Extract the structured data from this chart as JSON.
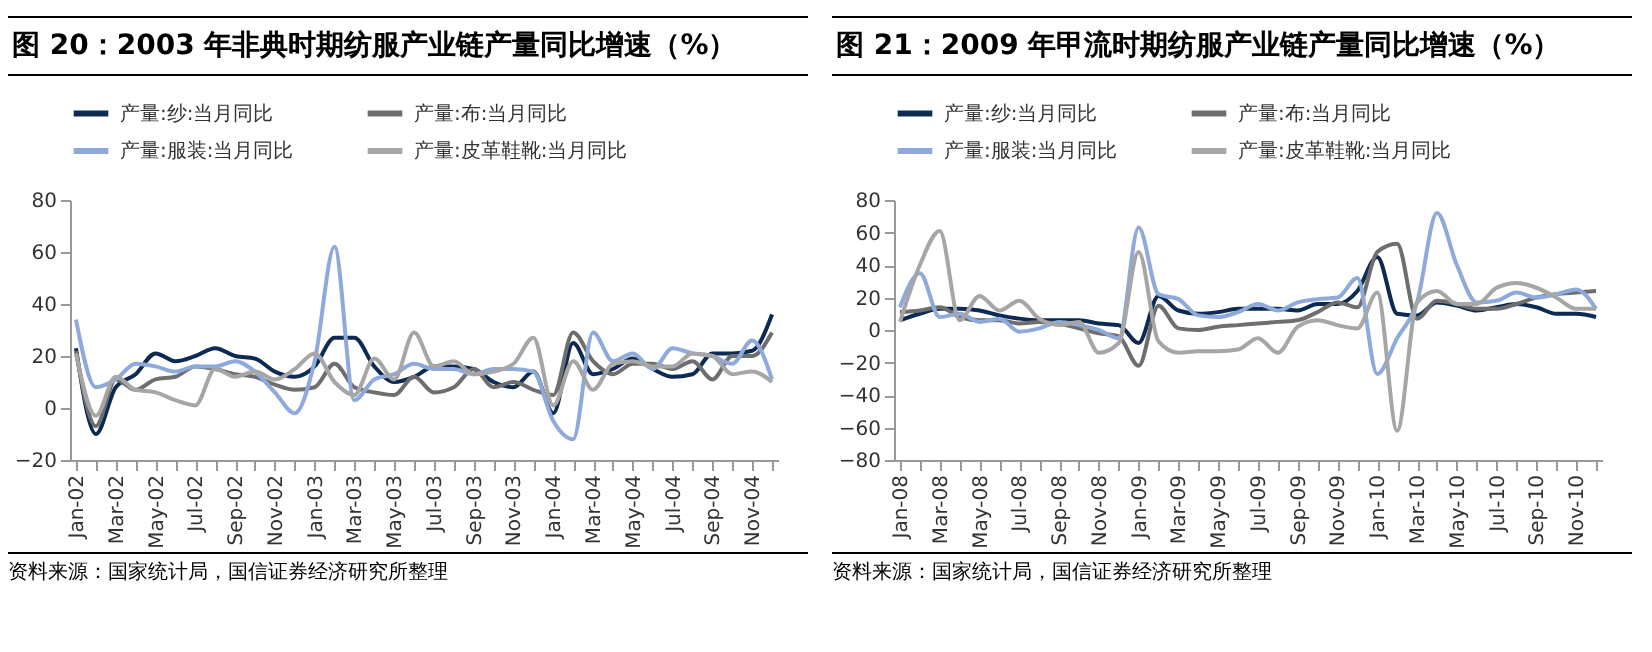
{
  "chart_data": [
    {
      "type": "line",
      "title": "图 20：2003 年非典时期纺服产业链产量同比增速（%）",
      "annotations": [
        "资料来源：国家统计局，国信证券经济研究所整理"
      ],
      "categories": [
        "Jan-02",
        null,
        "Mar-02",
        null,
        "May-02",
        null,
        "Jul-02",
        null,
        "Sep-02",
        null,
        "Nov-02",
        null,
        "Jan-03",
        null,
        "Mar-03",
        null,
        "May-03",
        null,
        "Jul-03",
        null,
        "Sep-03",
        null,
        "Nov-03",
        null,
        "Jan-04",
        null,
        "Mar-04",
        null,
        "May-04",
        null,
        "Jul-04",
        null,
        "Sep-04",
        null,
        "Nov-04",
        null
      ],
      "series": [
        {
          "name": "产量:纱:当月同比",
          "color": "#0d2a52",
          "values": [
            23,
            -10,
            8,
            13,
            21,
            18,
            20,
            23,
            20,
            19,
            14,
            12,
            16,
            27,
            27,
            16,
            10,
            12,
            16,
            16,
            15,
            10,
            8,
            14,
            -2,
            25,
            13,
            15,
            19,
            15,
            12,
            13,
            21,
            21,
            22,
            36
          ]
        },
        {
          "name": "产量:布:当月同比",
          "color": "#6e6e6e",
          "values": [
            22,
            -7,
            11,
            7,
            11,
            12,
            16,
            15,
            13,
            12,
            9,
            7,
            8,
            17,
            8,
            6,
            5,
            12,
            6,
            8,
            15,
            8,
            10,
            7,
            5,
            29,
            18,
            13,
            17,
            17,
            15,
            18,
            11,
            20,
            20,
            29
          ]
        },
        {
          "name": "产量:服装:当月同比",
          "color": "#8eaadb",
          "values": [
            34,
            8,
            11,
            17,
            16,
            14,
            16,
            16,
            18,
            14,
            6,
            -2,
            18,
            62,
            3,
            11,
            13,
            17,
            15,
            15,
            13,
            15,
            15,
            14,
            -5,
            -12,
            29,
            18,
            21,
            15,
            23,
            21,
            20,
            17,
            26,
            11
          ]
        },
        {
          "name": "产量:皮革鞋靴:当月同比",
          "color": "#a6a6a6",
          "values": [
            21,
            -3,
            12,
            7,
            6,
            3,
            1,
            15,
            12,
            14,
            11,
            15,
            21,
            10,
            5,
            19,
            11,
            29,
            16,
            18,
            13,
            14,
            17,
            27,
            1,
            18,
            7,
            17,
            18,
            16,
            16,
            21,
            20,
            13,
            14,
            10
          ]
        }
      ],
      "ylim": [
        -20,
        80
      ],
      "yticks": [
        -20,
        0,
        20,
        40,
        60,
        80
      ],
      "grid": false,
      "legend": "top"
    },
    {
      "type": "line",
      "title": "图 21：2009 年甲流时期纺服产业链产量同比增速（%）",
      "annotations": [
        "资料来源：国家统计局，国信证券经济研究所整理"
      ],
      "categories": [
        "Jan-08",
        null,
        "Mar-08",
        null,
        "May-08",
        null,
        "Jul-08",
        null,
        "Sep-08",
        null,
        "Nov-08",
        null,
        "Jan-09",
        null,
        "Mar-09",
        null,
        "May-09",
        null,
        "Jul-09",
        null,
        "Sep-09",
        null,
        "Nov-09",
        null,
        "Jan-10",
        null,
        "Mar-10",
        null,
        "May-10",
        null,
        "Jul-10",
        null,
        "Sep-10",
        null,
        "Nov-10",
        null
      ],
      "series": [
        {
          "name": "产量:纱:当月同比",
          "color": "#0d2a52",
          "values": [
            6,
            10,
            13,
            13,
            12,
            9,
            7,
            6,
            6,
            6,
            4,
            3,
            -8,
            21,
            12,
            10,
            11,
            13,
            13,
            13,
            12,
            16,
            16,
            24,
            45,
            10,
            9,
            17,
            15,
            12,
            14,
            16,
            14,
            10,
            10,
            8
          ]
        },
        {
          "name": "产量:布:当月同比",
          "color": "#6e6e6e",
          "values": [
            11,
            12,
            14,
            8,
            6,
            6,
            4,
            5,
            4,
            1,
            -2,
            -4,
            -22,
            15,
            1,
            0,
            2,
            3,
            4,
            5,
            6,
            11,
            17,
            14,
            48,
            53,
            7,
            18,
            16,
            13,
            13,
            16,
            20,
            22,
            23,
            24
          ]
        },
        {
          "name": "产量:服装:当月同比",
          "color": "#8eaadb",
          "values": [
            14,
            35,
            8,
            10,
            5,
            7,
            -1,
            1,
            5,
            3,
            0,
            -5,
            63,
            22,
            19,
            9,
            8,
            11,
            16,
            12,
            17,
            19,
            20,
            32,
            -27,
            -5,
            17,
            72,
            40,
            17,
            18,
            23,
            20,
            22,
            25,
            13
          ]
        },
        {
          "name": "产量:皮革鞋靴:当月同比",
          "color": "#a6a6a6",
          "values": [
            5,
            40,
            61,
            6,
            21,
            12,
            18,
            7,
            3,
            5,
            -14,
            -8,
            48,
            -7,
            -14,
            -13,
            -13,
            -12,
            -5,
            -14,
            2,
            6,
            3,
            1,
            23,
            -62,
            17,
            24,
            16,
            16,
            26,
            29,
            26,
            20,
            13,
            13
          ]
        }
      ],
      "ylim": [
        -80,
        80
      ],
      "yticks": [
        -80,
        -60,
        -40,
        -20,
        0,
        20,
        40,
        60,
        80
      ],
      "grid": false,
      "legend": "top"
    }
  ]
}
